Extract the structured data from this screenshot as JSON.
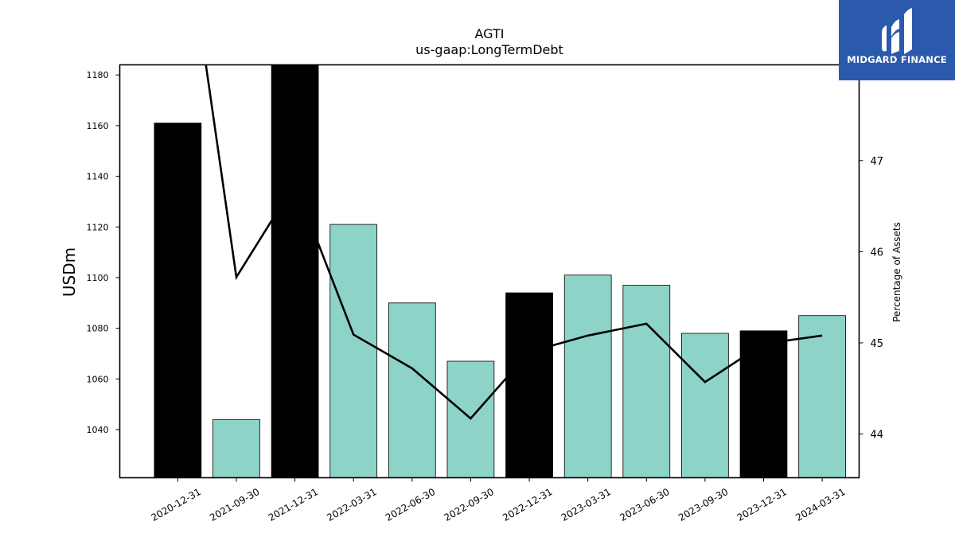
{
  "brand": {
    "name": "MIDGARD FINANCE",
    "color": "#2b5aad"
  },
  "chart_data": {
    "type": "bar",
    "title": "AGTI",
    "subtitle": "us-gaap:LongTermDebt",
    "ylabel": "USDm",
    "y2label": "Percentage of Assets",
    "categories": [
      "2020-12-31",
      "2021-09-30",
      "2021-12-31",
      "2022-03-31",
      "2022-06-30",
      "2022-09-30",
      "2022-12-31",
      "2023-03-31",
      "2023-06-30",
      "2023-09-30",
      "2023-12-31",
      "2024-03-31"
    ],
    "series": [
      {
        "type": "bar",
        "values": [
          1161,
          1044,
          1184,
          1121,
          1090,
          1067,
          1094,
          1101,
          1097,
          1078,
          1079,
          1085
        ],
        "colors": [
          "#000000",
          "#8dd3c7",
          "#000000",
          "#8dd3c7",
          "#8dd3c7",
          "#8dd3c7",
          "#000000",
          "#8dd3c7",
          "#8dd3c7",
          "#8dd3c7",
          "#000000",
          "#8dd3c7"
        ]
      },
      {
        "type": "line",
        "axis": "right",
        "color": "#000000",
        "values": [
          50.2,
          45.72,
          46.75,
          45.09,
          44.72,
          44.17,
          44.9,
          45.08,
          45.21,
          44.57,
          44.99,
          45.08
        ]
      }
    ],
    "ylim": [
      1021,
      1184
    ],
    "yticks": [
      1040,
      1060,
      1080,
      1100,
      1120,
      1140,
      1160,
      1180
    ],
    "y2lim": [
      43.52,
      48.05
    ],
    "y2ticks": [
      44,
      45,
      46,
      47
    ],
    "grid": false
  }
}
